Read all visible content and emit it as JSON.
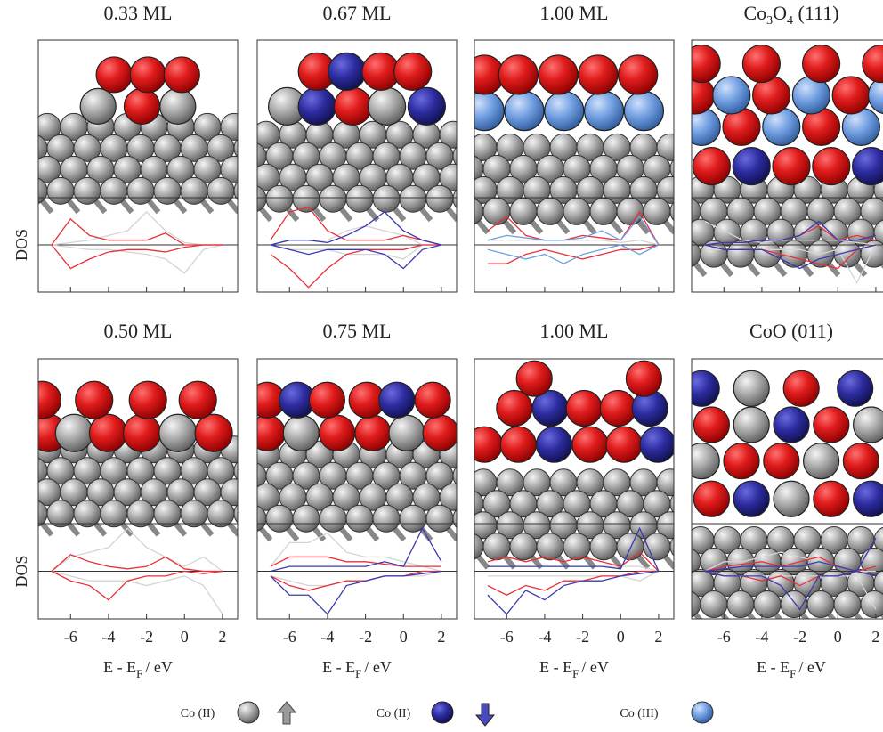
{
  "chart_data": [
    {
      "type": "line",
      "title": "0.33 ML",
      "ylabel": "DOS",
      "show_tick_labels": false,
      "x": [
        -7,
        -6,
        -5,
        -4,
        -3,
        -2,
        -1,
        0,
        1,
        2
      ],
      "xlim": [
        -7.7,
        2.8
      ],
      "xticks": [
        -6,
        -4,
        -2,
        0,
        2
      ],
      "ylim": [
        -1,
        1
      ],
      "series": [
        {
          "color": "#d4d4d4",
          "values": [
            0,
            0.05,
            0.1,
            0.2,
            0.3,
            0.7,
            0.3,
            0.05,
            0,
            0
          ]
        },
        {
          "color": "#d4d4d4",
          "values": [
            0,
            -0.05,
            -0.1,
            -0.1,
            -0.15,
            -0.2,
            -0.3,
            -0.6,
            -0.1,
            0
          ]
        },
        {
          "color": "#e8303a",
          "values": [
            0,
            0.55,
            0.2,
            0.1,
            0.1,
            0.1,
            0.25,
            0,
            0,
            0
          ]
        },
        {
          "color": "#e8303a",
          "values": [
            0,
            -0.5,
            -0.3,
            -0.15,
            -0.1,
            -0.1,
            -0.15,
            -0.05,
            0,
            0
          ]
        }
      ]
    },
    {
      "type": "line",
      "title": "0.67 ML",
      "show_tick_labels": false,
      "x": [
        -7,
        -6,
        -5,
        -4,
        -3,
        -2,
        -1,
        0,
        1,
        2
      ],
      "xlim": [
        -7.7,
        2.8
      ],
      "xticks": [
        -6,
        -4,
        -2,
        0,
        2
      ],
      "ylim": [
        -1,
        1
      ],
      "series": [
        {
          "color": "#d4d4d4",
          "values": [
            0,
            0.1,
            0.1,
            0.1,
            0.3,
            0.4,
            0.3,
            0.2,
            0,
            0
          ]
        },
        {
          "color": "#d4d4d4",
          "values": [
            0,
            -0.1,
            -0.1,
            -0.1,
            -0.2,
            -0.2,
            -0.2,
            -0.3,
            0,
            0
          ]
        },
        {
          "color": "#e8303a",
          "values": [
            0.1,
            0.7,
            0.8,
            0.3,
            0.1,
            0.1,
            0.1,
            0.2,
            0.1,
            0
          ]
        },
        {
          "color": "#e8303a",
          "values": [
            -0.2,
            -0.5,
            -0.9,
            -0.5,
            -0.2,
            -0.1,
            -0.1,
            -0.1,
            0,
            0
          ]
        },
        {
          "color": "#3a3ab0",
          "values": [
            0,
            0.1,
            0.1,
            0.05,
            0.2,
            0.4,
            0.7,
            0.3,
            0.1,
            0
          ]
        },
        {
          "color": "#3a3ab0",
          "values": [
            0,
            -0.1,
            -0.2,
            -0.1,
            -0.1,
            -0.1,
            -0.2,
            -0.5,
            -0.1,
            0
          ]
        }
      ]
    },
    {
      "type": "line",
      "title": "1.00 ML",
      "show_tick_labels": false,
      "x": [
        -7,
        -6,
        -5,
        -4,
        -3,
        -2,
        -1,
        0,
        1,
        2
      ],
      "xlim": [
        -7.7,
        2.8
      ],
      "xticks": [
        -6,
        -4,
        -2,
        0,
        2
      ],
      "ylim": [
        -1,
        1
      ],
      "series": [
        {
          "color": "#d4d4d4",
          "values": [
            0.1,
            0.1,
            0.1,
            0.1,
            0.1,
            0.1,
            0.1,
            0.05,
            0.1,
            0
          ]
        },
        {
          "color": "#e8303a",
          "values": [
            0.3,
            0.6,
            0.2,
            0.1,
            0.1,
            0.2,
            0.15,
            0.1,
            0.7,
            0
          ]
        },
        {
          "color": "#e8303a",
          "values": [
            -0.4,
            -0.4,
            -0.2,
            -0.1,
            -0.2,
            -0.3,
            -0.2,
            -0.1,
            -0.1,
            0
          ]
        },
        {
          "color": "#6fa0e0",
          "values": [
            0.1,
            0.2,
            0.15,
            0.1,
            0.1,
            0.15,
            0.3,
            0.1,
            0.6,
            0
          ]
        },
        {
          "color": "#6fa0e0",
          "values": [
            -0.1,
            -0.2,
            -0.3,
            -0.2,
            -0.4,
            -0.2,
            -0.1,
            0,
            -0.2,
            0
          ]
        }
      ]
    },
    {
      "type": "line",
      "title": "Co3O4 (111)",
      "show_tick_labels": false,
      "x": [
        -7,
        -6,
        -5,
        -4,
        -3,
        -2,
        -1,
        0,
        1,
        2
      ],
      "xlim": [
        -7.7,
        2.8
      ],
      "xticks": [
        -6,
        -4,
        -2,
        0,
        2
      ],
      "ylim": [
        -1,
        1
      ],
      "series": [
        {
          "color": "#d4d4d4",
          "values": [
            0.5,
            0.3,
            0.1,
            0.05,
            0.1,
            0.1,
            0.1,
            0.1,
            0.05,
            0
          ]
        },
        {
          "color": "#d4d4d4",
          "values": [
            -0.1,
            -0.1,
            -0.1,
            -0.1,
            -0.1,
            -0.1,
            -0.2,
            -0.1,
            -0.8,
            0
          ]
        },
        {
          "color": "#e8303a",
          "values": [
            0,
            0.05,
            0.05,
            0.1,
            0.1,
            0.2,
            0.4,
            0.1,
            0.2,
            0.1
          ]
        },
        {
          "color": "#e8303a",
          "values": [
            0,
            -0.1,
            -0.1,
            -0.1,
            -0.2,
            -0.3,
            -0.4,
            -0.5,
            -0.1,
            0
          ]
        },
        {
          "color": "#3a3ab0",
          "values": [
            0,
            0.05,
            0.05,
            0.1,
            0.1,
            0.2,
            0.5,
            0.1,
            0.1,
            0.2
          ]
        },
        {
          "color": "#3a3ab0",
          "values": [
            0,
            -0.1,
            -0.1,
            -0.1,
            -0.3,
            -0.5,
            -0.3,
            -0.2,
            -0.1,
            0
          ]
        }
      ]
    },
    {
      "type": "line",
      "title": "0.50 ML",
      "ylabel": "DOS",
      "show_tick_labels": true,
      "xlabel": {
        "text": "E - E",
        "subscript": "F",
        "unit": "/ eV"
      },
      "x": [
        -7,
        -6,
        -5,
        -4,
        -3,
        -2,
        -1,
        0,
        1,
        2
      ],
      "xlim": [
        -7.7,
        2.8
      ],
      "xticks": [
        -6,
        -4,
        -2,
        0,
        2
      ],
      "ylim": [
        -1,
        1
      ],
      "series": [
        {
          "color": "#d4d4d4",
          "values": [
            0,
            0.3,
            0.4,
            0.5,
            0.9,
            0.5,
            0.3,
            0.1,
            0.3,
            0
          ]
        },
        {
          "color": "#d4d4d4",
          "values": [
            0,
            -0.1,
            -0.2,
            -0.2,
            -0.2,
            -0.3,
            -0.2,
            -0.1,
            -0.3,
            -0.9
          ]
        },
        {
          "color": "#e8303a",
          "values": [
            0,
            0.35,
            0.2,
            0.1,
            0.05,
            0.1,
            0.3,
            0.05,
            0,
            0
          ]
        },
        {
          "color": "#e8303a",
          "values": [
            0,
            -0.2,
            -0.3,
            -0.6,
            -0.2,
            -0.1,
            -0.1,
            0,
            -0.05,
            0
          ]
        }
      ]
    },
    {
      "type": "line",
      "title": "0.75 ML",
      "show_tick_labels": true,
      "xlabel": {
        "text": "E - E",
        "subscript": "F",
        "unit": "/ eV"
      },
      "x": [
        -7,
        -6,
        -5,
        -4,
        -3,
        -2,
        -1,
        0,
        1,
        2
      ],
      "xlim": [
        -7.7,
        2.8
      ],
      "xticks": [
        -6,
        -4,
        -2,
        0,
        2
      ],
      "ylim": [
        -1,
        1
      ],
      "series": [
        {
          "color": "#d4d4d4",
          "values": [
            0.1,
            0.6,
            0.6,
            0.8,
            0.4,
            0.3,
            0.3,
            0.2,
            0.1,
            0
          ]
        },
        {
          "color": "#d4d4d4",
          "values": [
            -0.1,
            -0.2,
            -0.3,
            -0.3,
            -0.2,
            -0.2,
            -0.1,
            -0.1,
            -0.1,
            0
          ]
        },
        {
          "color": "#e8303a",
          "values": [
            0.1,
            0.3,
            0.3,
            0.3,
            0.2,
            0.2,
            0.15,
            0.1,
            0.1,
            0.1
          ]
        },
        {
          "color": "#e8303a",
          "values": [
            -0.1,
            -0.3,
            -0.4,
            -0.3,
            -0.2,
            -0.2,
            -0.1,
            -0.1,
            0,
            0
          ]
        },
        {
          "color": "#3a3ab0",
          "values": [
            0,
            0.1,
            0.1,
            0.1,
            0.1,
            0.1,
            0.2,
            0.1,
            0.9,
            0.2
          ]
        },
        {
          "color": "#3a3ab0",
          "values": [
            -0.1,
            -0.5,
            -0.5,
            -0.9,
            -0.3,
            -0.2,
            -0.1,
            -0.1,
            -0.05,
            0
          ]
        }
      ]
    },
    {
      "type": "line",
      "title": "1.00 ML",
      "show_tick_labels": true,
      "xlabel": {
        "text": "E - E",
        "subscript": "F",
        "unit": "/ eV"
      },
      "x": [
        -7,
        -6,
        -5,
        -4,
        -3,
        -2,
        -1,
        0,
        1,
        2
      ],
      "xlim": [
        -7.7,
        2.8
      ],
      "xticks": [
        -6,
        -4,
        -2,
        0,
        2
      ],
      "ylim": [
        -1,
        1
      ],
      "series": [
        {
          "color": "#d4d4d4",
          "values": [
            0.1,
            0.1,
            0.1,
            0.1,
            0.1,
            0.1,
            0.1,
            0.1,
            0.1,
            0
          ]
        },
        {
          "color": "#d4d4d4",
          "values": [
            -0.1,
            -0.1,
            -0.1,
            -0.1,
            -0.1,
            -0.1,
            -0.1,
            -0.1,
            -0.2,
            0
          ]
        },
        {
          "color": "#e8303a",
          "values": [
            0.2,
            0.3,
            0.2,
            0.3,
            0.2,
            0.3,
            0.2,
            0.1,
            0.4,
            0
          ]
        },
        {
          "color": "#e8303a",
          "values": [
            -0.3,
            -0.5,
            -0.3,
            -0.4,
            -0.2,
            -0.2,
            -0.1,
            -0.1,
            0,
            0
          ]
        },
        {
          "color": "#3a3ab0",
          "values": [
            0.1,
            0.1,
            0.1,
            0.1,
            0.1,
            0.1,
            0.1,
            0.05,
            0.9,
            0
          ]
        },
        {
          "color": "#3a3ab0",
          "values": [
            -0.5,
            -0.9,
            -0.4,
            -0.6,
            -0.3,
            -0.2,
            -0.2,
            -0.1,
            -0.05,
            0
          ]
        }
      ]
    },
    {
      "type": "line",
      "title": "CoO (011)",
      "show_tick_labels": true,
      "xlabel": {
        "text": "E - E",
        "subscript": "F",
        "unit": "/ eV"
      },
      "x": [
        -7,
        -6,
        -5,
        -4,
        -3,
        -2,
        -1,
        0,
        1,
        2
      ],
      "xlim": [
        -7.7,
        2.8
      ],
      "xticks": [
        -6,
        -4,
        -2,
        0,
        2
      ],
      "ylim": [
        -1,
        1
      ],
      "series": [
        {
          "color": "#d4d4d4",
          "values": [
            0,
            0.2,
            0.2,
            0.3,
            0.4,
            0.3,
            0.2,
            0.1,
            0,
            0
          ]
        },
        {
          "color": "#d4d4d4",
          "values": [
            0,
            -0.1,
            -0.1,
            -0.1,
            -0.1,
            -0.1,
            -0.1,
            -0.1,
            -0.1,
            -0.8
          ]
        },
        {
          "color": "#e8303a",
          "values": [
            0,
            0.1,
            0.15,
            0.2,
            0.1,
            0.2,
            0.3,
            0.1,
            0,
            0.1
          ]
        },
        {
          "color": "#e8303a",
          "values": [
            0,
            -0.1,
            -0.1,
            -0.2,
            -0.1,
            -0.3,
            -0.1,
            -0.1,
            0,
            -0.1
          ]
        },
        {
          "color": "#3a3ab0",
          "values": [
            0,
            0.05,
            0.1,
            0.1,
            0.1,
            0.1,
            0.2,
            0.1,
            0,
            0.7
          ]
        },
        {
          "color": "#3a3ab0",
          "values": [
            0,
            -0.1,
            -0.1,
            -0.1,
            -0.3,
            -0.8,
            -0.1,
            -0.1,
            0,
            -0.1
          ]
        }
      ]
    }
  ],
  "legend": [
    {
      "label": "Co (II)"
    },
    {
      "label": "Co (II)"
    },
    {
      "label": "Co (III)"
    }
  ]
}
